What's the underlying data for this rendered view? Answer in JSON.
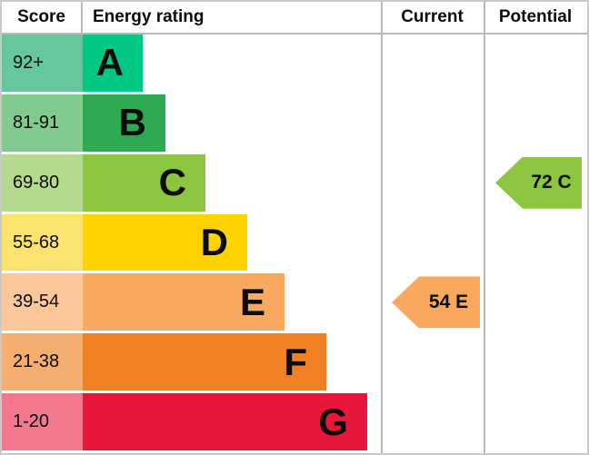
{
  "header": {
    "score_label": "Score",
    "rating_label": "Energy rating",
    "current_label": "Current",
    "potential_label": "Potential"
  },
  "rows": [
    {
      "score": "92+",
      "grade": "A"
    },
    {
      "score": "81-91",
      "grade": "B"
    },
    {
      "score": "69-80",
      "grade": "C"
    },
    {
      "score": "55-68",
      "grade": "D"
    },
    {
      "score": "39-54",
      "grade": "E"
    },
    {
      "score": "21-38",
      "grade": "F"
    },
    {
      "score": "1-20",
      "grade": "G"
    }
  ],
  "current": {
    "label": "54 E"
  },
  "potential": {
    "label": "72 C"
  },
  "colors": {
    "band_a_bar": "#00c781",
    "band_a_cell": "#66c79d",
    "band_b_bar": "#2dab52",
    "band_b_cell": "#82ca8e",
    "band_c_bar": "#8cc63e",
    "band_c_cell": "#b5da8e",
    "band_d_bar": "#ffd200",
    "band_d_cell": "#fce26e",
    "band_e_bar": "#f9a860",
    "band_e_cell": "#fbc79b",
    "band_f_bar": "#ef8023",
    "band_f_cell": "#f5ad70",
    "band_g_bar": "#e9153b",
    "band_g_cell": "#f3788d",
    "grid_line": "#b9b9b9",
    "text": "#0b0c0c"
  },
  "chart_data": {
    "type": "bar",
    "title": "Energy rating",
    "columns": [
      "Score",
      "Energy rating",
      "Current",
      "Potential"
    ],
    "categories": [
      "A",
      "B",
      "C",
      "D",
      "E",
      "F",
      "G"
    ],
    "score_ranges": [
      "92+",
      "81-91",
      "69-80",
      "55-68",
      "39-54",
      "21-38",
      "1-20"
    ],
    "bar_relative_lengths": [
      0.21,
      0.29,
      0.43,
      0.58,
      0.71,
      0.86,
      1.0
    ],
    "bar_colors": [
      "#00c781",
      "#2dab52",
      "#8cc63e",
      "#ffd200",
      "#f9a860",
      "#ef8023",
      "#e9153b"
    ],
    "current": {
      "score": 54,
      "band": "E",
      "label": "54 E",
      "color": "#f9a860"
    },
    "potential": {
      "score": 72,
      "band": "C",
      "label": "72 C",
      "color": "#8cc63e"
    },
    "legend_position": "none",
    "grid": false
  }
}
